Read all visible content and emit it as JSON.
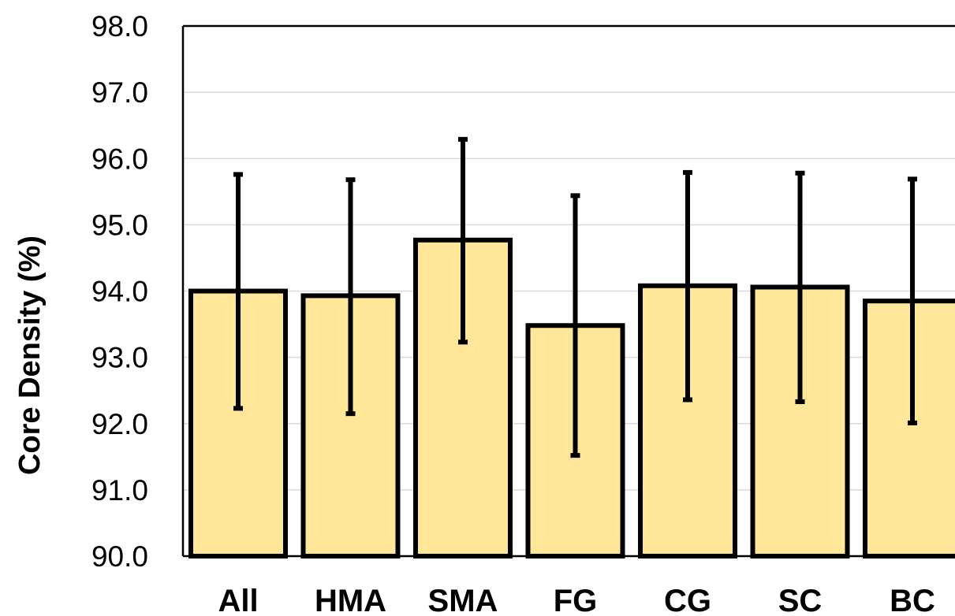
{
  "chart_data": {
    "type": "bar",
    "title": "",
    "xlabel": "",
    "ylabel": "Core Density (%)",
    "ylim": [
      90.0,
      98.0
    ],
    "yticks": [
      "90.0",
      "91.0",
      "92.0",
      "93.0",
      "94.0",
      "95.0",
      "96.0",
      "97.0",
      "98.0"
    ],
    "grid": true,
    "categories": [
      "All",
      "HMA",
      "SMA",
      "FG",
      "CG",
      "SC",
      "BC"
    ],
    "values": [
      94.0,
      93.93,
      94.77,
      93.48,
      94.08,
      94.06,
      93.85
    ],
    "error_low": [
      92.23,
      92.15,
      93.23,
      91.52,
      92.36,
      92.33,
      92.01
    ],
    "error_high": [
      95.76,
      95.68,
      96.29,
      95.44,
      95.79,
      95.78,
      95.69
    ],
    "colors": {
      "bar_fill": "#FFE699",
      "bar_edge": "#000000",
      "error_bar": "#000000",
      "grid": "#D9D9D9"
    }
  }
}
